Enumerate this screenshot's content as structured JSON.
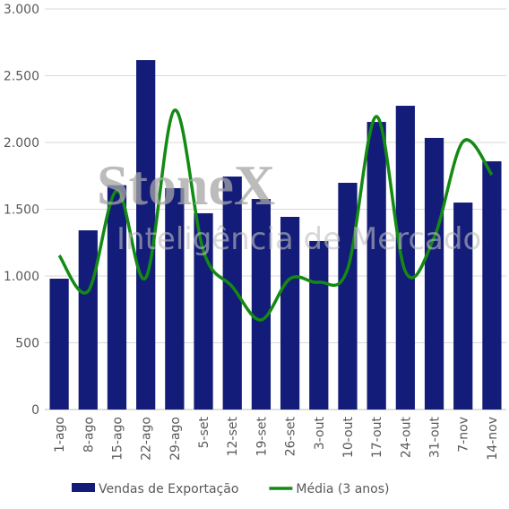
{
  "chart_data": {
    "type": "bar",
    "categories": [
      "1-ago",
      "8-ago",
      "15-ago",
      "22-ago",
      "29-ago",
      "5-set",
      "12-set",
      "19-set",
      "26-set",
      "3-out",
      "10-out",
      "17-out",
      "24-out",
      "31-out",
      "7-nov",
      "14-nov"
    ],
    "series": [
      {
        "name": "Vendas de Exportação",
        "type": "bar",
        "color": "#131c78",
        "values": [
          980,
          1342,
          1680,
          2617,
          1658,
          1470,
          1745,
          1577,
          1443,
          1262,
          1698,
          2154,
          2275,
          2034,
          1550,
          1859
        ]
      },
      {
        "name": "Média (3 anos)",
        "type": "line",
        "color": "#138a13",
        "values": [
          1154,
          886,
          1640,
          987,
          2242,
          1188,
          920,
          671,
          980,
          953,
          1054,
          2195,
          1034,
          1289,
          2007,
          1758
        ]
      }
    ],
    "ylim": [
      0,
      3000
    ],
    "yticks": [
      0,
      500,
      {
        "value": 1000,
        "label": "1.000"
      },
      {
        "value": 1500,
        "label": "1.500"
      },
      {
        "value": 2000,
        "label": "2.000"
      },
      {
        "value": 2500,
        "label": "2.500"
      },
      {
        "value": 3000,
        "label": "3.000"
      }
    ],
    "grid": true,
    "legend": "bottom",
    "watermark": {
      "logo": "StoneX",
      "tagline": "Inteligência de Mercado"
    }
  }
}
